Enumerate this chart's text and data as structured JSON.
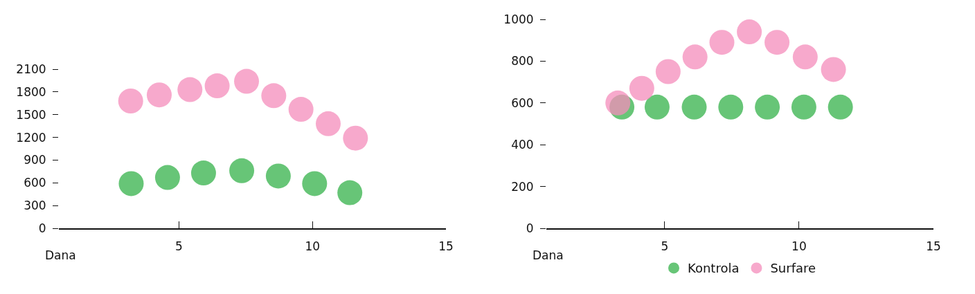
{
  "chart_data": [
    {
      "type": "scatter",
      "xlabel": "Dana",
      "xlim": [
        0.5,
        15
      ],
      "xticks": [
        5,
        10,
        15
      ],
      "ylim": [
        0,
        2100
      ],
      "yticks": [
        0,
        300,
        600,
        900,
        1200,
        1500,
        1800,
        2100
      ],
      "grid": false,
      "legend": false,
      "marker": "circle",
      "series": [
        {
          "color": "#f48cbb",
          "x": [
            3.19,
            4.26,
            5.41,
            6.43,
            7.53,
            8.55,
            9.57,
            10.59,
            11.61
          ],
          "values": [
            1680,
            1760,
            1830,
            1880,
            1940,
            1750,
            1570,
            1380,
            1190
          ]
        },
        {
          "color": "#34b24a",
          "x": [
            3.21,
            4.57,
            5.92,
            7.35,
            8.72,
            10.08,
            11.4
          ],
          "values": [
            590,
            670,
            730,
            760,
            690,
            590,
            470
          ]
        }
      ]
    },
    {
      "type": "scatter",
      "xlabel": "Dana",
      "xlim": [
        0.6,
        15
      ],
      "xticks": [
        5,
        10,
        15
      ],
      "ylim": [
        0,
        1000
      ],
      "yticks": [
        0,
        200,
        400,
        600,
        800,
        1000
      ],
      "grid": false,
      "legend": "bottom",
      "marker": "circle",
      "series": [
        {
          "name": "Kontrola",
          "color": "#34b24a",
          "x": [
            3.41,
            4.72,
            6.1,
            7.46,
            8.82,
            10.18,
            11.54
          ],
          "values": [
            580,
            580,
            580,
            580,
            580,
            580,
            580
          ]
        },
        {
          "name": "Surfare",
          "color": "#f48cbb",
          "x": [
            3.26,
            4.15,
            5.13,
            6.13,
            7.13,
            8.15,
            9.18,
            10.23,
            11.28
          ],
          "values": [
            600,
            670,
            750,
            820,
            890,
            940,
            890,
            820,
            760
          ]
        }
      ]
    }
  ]
}
